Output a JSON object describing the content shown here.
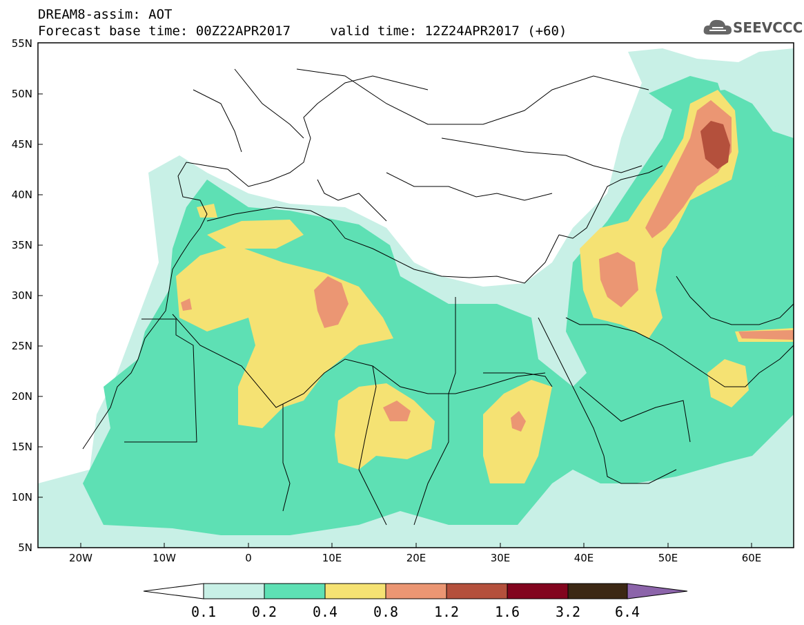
{
  "header": {
    "title_line1": "DREAM8-assim: AOT",
    "title_line2": "Forecast base time: 00Z22APR2017     valid time: 12Z24APR2017 (+60)"
  },
  "logo": {
    "text": "SEEVCCC",
    "icon": "cloud-icon"
  },
  "map": {
    "lat_labels": [
      "55N",
      "50N",
      "45N",
      "40N",
      "35N",
      "30N",
      "25N",
      "20N",
      "15N",
      "10N",
      "5N"
    ],
    "lon_labels": [
      "20W",
      "10W",
      "0",
      "10E",
      "20E",
      "30E",
      "40E",
      "50E",
      "60E"
    ]
  },
  "colorbar": {
    "labels": [
      "0.1",
      "0.2",
      "0.4",
      "0.8",
      "1.2",
      "1.6",
      "3.2",
      "6.4"
    ],
    "colors": [
      "#c8f0e6",
      "#5ee0b4",
      "#f5e273",
      "#eb9673",
      "#b4503c",
      "#82051e",
      "#3c2814",
      "#8c64aa"
    ]
  }
}
